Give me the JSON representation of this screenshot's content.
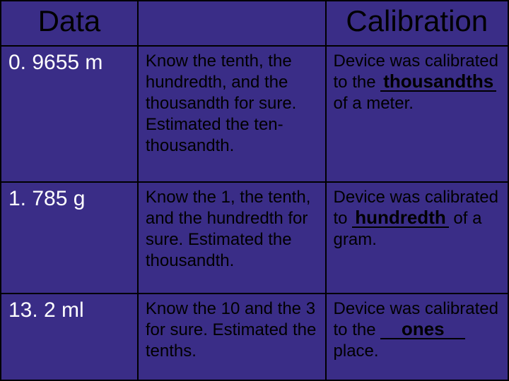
{
  "colors": {
    "background": "#3a2d87",
    "border": "#000000",
    "header_text": "#000000",
    "data_text": "#ffffff",
    "body_text": "#000000"
  },
  "typography": {
    "header_font": "Comic Sans MS",
    "header_size_pt": 42,
    "data_font": "Arial",
    "data_size_pt": 30,
    "body_font": "Comic Sans MS",
    "body_size_pt": 24,
    "blank_weight": "bold"
  },
  "columns": [
    {
      "key": "data",
      "label": "Data",
      "width_pct": 27
    },
    {
      "key": "know",
      "label": "",
      "width_pct": 37
    },
    {
      "key": "calibration",
      "label": "Calibration",
      "width_pct": 36
    }
  ],
  "rows": [
    {
      "data": "0. 9655 m",
      "know": "Know the tenth, the hundredth, and the thousandth for sure.  Estimated the ten-thousandth.",
      "calib_pre": "Device was calibrated to the ",
      "calib_blank": "thousandths",
      "calib_post": " of a meter."
    },
    {
      "data": "1. 785 g",
      "know": "Know the 1, the tenth, and the hundredth for sure.  Estimated the thousandth.",
      "calib_pre": "Device was calibrated to ",
      "calib_blank": "hundredth",
      "calib_post": " of a gram."
    },
    {
      "data": "13. 2 ml",
      "know": "Know the 10 and the 3 for sure.  Estimated the tenths.",
      "calib_pre": "Device was calibrated to the ",
      "calib_blank": "ones",
      "calib_post": " place."
    }
  ]
}
